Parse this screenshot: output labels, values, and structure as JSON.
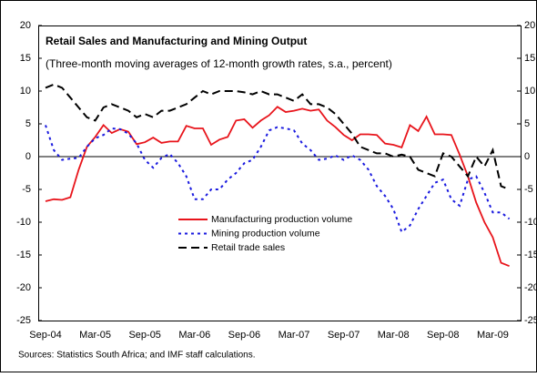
{
  "chart_data": {
    "type": "line",
    "title": "Retail Sales and Manufacturing and Mining Output",
    "subtitle": "(Three-month moving averages of 12-month growth rates, s.a., percent)",
    "source": "Sources: Statistics South Africa; and IMF staff calculations.",
    "categories": [
      "Sep-04",
      null,
      null,
      null,
      null,
      null,
      "Mar-05",
      null,
      null,
      null,
      null,
      null,
      "Sep-05",
      null,
      null,
      null,
      null,
      null,
      "Mar-06",
      null,
      null,
      null,
      null,
      null,
      "Sep-06",
      null,
      null,
      null,
      null,
      null,
      "Mar-07",
      null,
      null,
      null,
      null,
      null,
      "Sep-07",
      null,
      null,
      null,
      null,
      null,
      "Mar-08",
      null,
      null,
      null,
      null,
      null,
      "Sep-08",
      null,
      null,
      null,
      null,
      null,
      "Mar-09",
      null,
      null
    ],
    "series": [
      {
        "name": "Manufacturing production volume",
        "color": "#e8141b",
        "dash": "solid",
        "values": [
          -6.8,
          -6.5,
          -6.6,
          -6.2,
          -2,
          1.5,
          3,
          4.8,
          3.6,
          4.2,
          3.8,
          1.9,
          2.2,
          2.9,
          2.1,
          2.3,
          2.3,
          4.7,
          4.3,
          4.3,
          1.8,
          2.6,
          3,
          5.5,
          5.7,
          4.4,
          5.5,
          6.3,
          7.6,
          6.8,
          7,
          7.3,
          7,
          7.2,
          5.5,
          4.5,
          3.3,
          2.5,
          3.4,
          3.4,
          3.3,
          2,
          1.8,
          1.4,
          4.8,
          3.9,
          6.1,
          3.4,
          3.4,
          3.3,
          0.3,
          -3,
          -7,
          -10,
          -12.3,
          -16.2,
          -16.7
        ]
      },
      {
        "name": "Mining production volume",
        "color": "#1a1adf",
        "dash": "dot",
        "values": [
          4.8,
          1,
          -0.5,
          -0.3,
          -0.2,
          1.5,
          2.8,
          3.3,
          4.3,
          4.2,
          3.5,
          2,
          -0.5,
          -1.7,
          -0.2,
          0.4,
          -1,
          -3,
          -6.5,
          -6.5,
          -5,
          -5,
          -3.5,
          -2.5,
          -1,
          -0.5,
          1.5,
          4,
          4.5,
          4.3,
          4,
          2,
          1,
          -0.5,
          -0.3,
          0.2,
          -0.5,
          0.2,
          -0.5,
          -2,
          -4.5,
          -6,
          -8,
          -11.5,
          -10.5,
          -8,
          -6,
          -4,
          -3.5,
          -6.5,
          -7.5,
          -3.5,
          -3,
          -5.5,
          -8.5,
          -8.5,
          -9.5
        ]
      },
      {
        "name": "Retail trade sales",
        "color": "#000000",
        "dash": "dash",
        "values": [
          10.5,
          11,
          10.5,
          9,
          7.5,
          6,
          5.5,
          7.5,
          8,
          7.5,
          7,
          6,
          6.5,
          6,
          7,
          7,
          7.5,
          8,
          9,
          10,
          9.5,
          10,
          10,
          10,
          9.8,
          9.5,
          10,
          9.5,
          9.5,
          9,
          8.5,
          9.5,
          8,
          8,
          7.5,
          6.5,
          5,
          3.5,
          1.5,
          1,
          0.5,
          0.5,
          0,
          0.3,
          0,
          -2,
          -2.5,
          -3,
          0.5,
          0,
          -1.5,
          -3,
          0,
          -1.5,
          1,
          -4.5,
          -5
        ]
      }
    ],
    "ylim": [
      -25,
      20
    ],
    "yticks": [
      -25,
      -20,
      -15,
      -10,
      -5,
      0,
      5,
      10,
      15,
      20
    ]
  }
}
